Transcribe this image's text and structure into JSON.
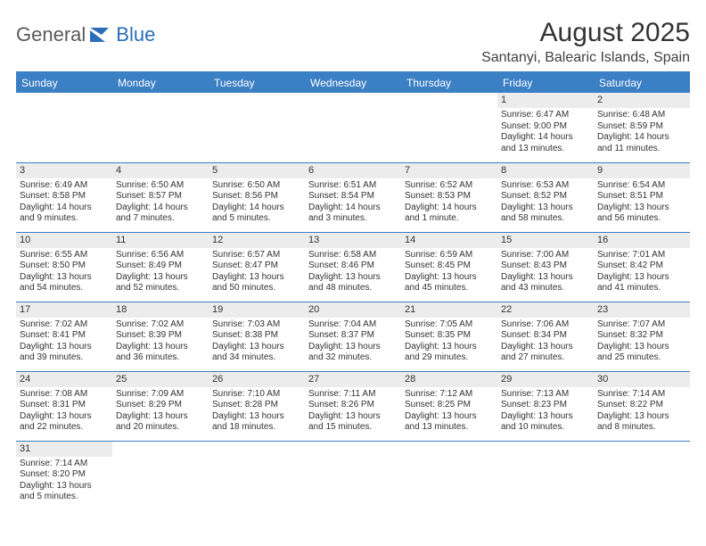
{
  "logo": {
    "text1": "General",
    "text2": "Blue"
  },
  "title": "August 2025",
  "location": "Santanyi, Balearic Islands, Spain",
  "colors": {
    "header_bg": "#3b7fc4",
    "header_text": "#ffffff",
    "daynum_bg": "#ececec",
    "border": "#3b7fc4",
    "logo_gray": "#5a5a5a",
    "logo_blue": "#2a6db8",
    "text": "#333333",
    "background": "#ffffff"
  },
  "typography": {
    "title_fontsize": 30,
    "location_fontsize": 16,
    "header_fontsize": 12,
    "daynum_fontsize": 11,
    "cell_fontsize": 10
  },
  "daysOfWeek": [
    "Sunday",
    "Monday",
    "Tuesday",
    "Wednesday",
    "Thursday",
    "Friday",
    "Saturday"
  ],
  "weeks": [
    [
      null,
      null,
      null,
      null,
      null,
      {
        "n": "1",
        "sunrise": "6:47 AM",
        "sunset": "9:00 PM",
        "daylight": "14 hours and 13 minutes."
      },
      {
        "n": "2",
        "sunrise": "6:48 AM",
        "sunset": "8:59 PM",
        "daylight": "14 hours and 11 minutes."
      }
    ],
    [
      {
        "n": "3",
        "sunrise": "6:49 AM",
        "sunset": "8:58 PM",
        "daylight": "14 hours and 9 minutes."
      },
      {
        "n": "4",
        "sunrise": "6:50 AM",
        "sunset": "8:57 PM",
        "daylight": "14 hours and 7 minutes."
      },
      {
        "n": "5",
        "sunrise": "6:50 AM",
        "sunset": "8:56 PM",
        "daylight": "14 hours and 5 minutes."
      },
      {
        "n": "6",
        "sunrise": "6:51 AM",
        "sunset": "8:54 PM",
        "daylight": "14 hours and 3 minutes."
      },
      {
        "n": "7",
        "sunrise": "6:52 AM",
        "sunset": "8:53 PM",
        "daylight": "14 hours and 1 minute."
      },
      {
        "n": "8",
        "sunrise": "6:53 AM",
        "sunset": "8:52 PM",
        "daylight": "13 hours and 58 minutes."
      },
      {
        "n": "9",
        "sunrise": "6:54 AM",
        "sunset": "8:51 PM",
        "daylight": "13 hours and 56 minutes."
      }
    ],
    [
      {
        "n": "10",
        "sunrise": "6:55 AM",
        "sunset": "8:50 PM",
        "daylight": "13 hours and 54 minutes."
      },
      {
        "n": "11",
        "sunrise": "6:56 AM",
        "sunset": "8:49 PM",
        "daylight": "13 hours and 52 minutes."
      },
      {
        "n": "12",
        "sunrise": "6:57 AM",
        "sunset": "8:47 PM",
        "daylight": "13 hours and 50 minutes."
      },
      {
        "n": "13",
        "sunrise": "6:58 AM",
        "sunset": "8:46 PM",
        "daylight": "13 hours and 48 minutes."
      },
      {
        "n": "14",
        "sunrise": "6:59 AM",
        "sunset": "8:45 PM",
        "daylight": "13 hours and 45 minutes."
      },
      {
        "n": "15",
        "sunrise": "7:00 AM",
        "sunset": "8:43 PM",
        "daylight": "13 hours and 43 minutes."
      },
      {
        "n": "16",
        "sunrise": "7:01 AM",
        "sunset": "8:42 PM",
        "daylight": "13 hours and 41 minutes."
      }
    ],
    [
      {
        "n": "17",
        "sunrise": "7:02 AM",
        "sunset": "8:41 PM",
        "daylight": "13 hours and 39 minutes."
      },
      {
        "n": "18",
        "sunrise": "7:02 AM",
        "sunset": "8:39 PM",
        "daylight": "13 hours and 36 minutes."
      },
      {
        "n": "19",
        "sunrise": "7:03 AM",
        "sunset": "8:38 PM",
        "daylight": "13 hours and 34 minutes."
      },
      {
        "n": "20",
        "sunrise": "7:04 AM",
        "sunset": "8:37 PM",
        "daylight": "13 hours and 32 minutes."
      },
      {
        "n": "21",
        "sunrise": "7:05 AM",
        "sunset": "8:35 PM",
        "daylight": "13 hours and 29 minutes."
      },
      {
        "n": "22",
        "sunrise": "7:06 AM",
        "sunset": "8:34 PM",
        "daylight": "13 hours and 27 minutes."
      },
      {
        "n": "23",
        "sunrise": "7:07 AM",
        "sunset": "8:32 PM",
        "daylight": "13 hours and 25 minutes."
      }
    ],
    [
      {
        "n": "24",
        "sunrise": "7:08 AM",
        "sunset": "8:31 PM",
        "daylight": "13 hours and 22 minutes."
      },
      {
        "n": "25",
        "sunrise": "7:09 AM",
        "sunset": "8:29 PM",
        "daylight": "13 hours and 20 minutes."
      },
      {
        "n": "26",
        "sunrise": "7:10 AM",
        "sunset": "8:28 PM",
        "daylight": "13 hours and 18 minutes."
      },
      {
        "n": "27",
        "sunrise": "7:11 AM",
        "sunset": "8:26 PM",
        "daylight": "13 hours and 15 minutes."
      },
      {
        "n": "28",
        "sunrise": "7:12 AM",
        "sunset": "8:25 PM",
        "daylight": "13 hours and 13 minutes."
      },
      {
        "n": "29",
        "sunrise": "7:13 AM",
        "sunset": "8:23 PM",
        "daylight": "13 hours and 10 minutes."
      },
      {
        "n": "30",
        "sunrise": "7:14 AM",
        "sunset": "8:22 PM",
        "daylight": "13 hours and 8 minutes."
      }
    ],
    [
      {
        "n": "31",
        "sunrise": "7:14 AM",
        "sunset": "8:20 PM",
        "daylight": "13 hours and 5 minutes."
      },
      null,
      null,
      null,
      null,
      null,
      null
    ]
  ],
  "labels": {
    "sunrise": "Sunrise:",
    "sunset": "Sunset:",
    "daylight": "Daylight:"
  }
}
